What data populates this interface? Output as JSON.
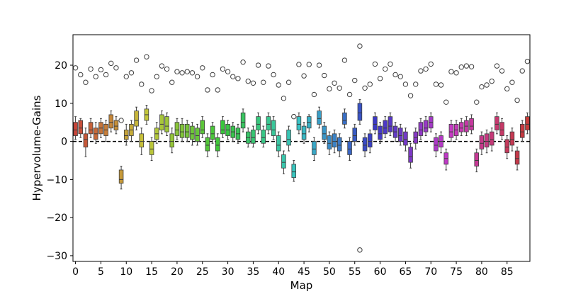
{
  "chart_data": {
    "type": "box",
    "xlabel": "Map",
    "ylabel": "Hypervolume-Gains",
    "xlim": [
      -0.5,
      89.5
    ],
    "ylim": [
      -31.5,
      28
    ],
    "x_ticks": [
      0,
      5,
      10,
      15,
      20,
      25,
      30,
      35,
      40,
      45,
      50,
      55,
      60,
      65,
      70,
      75,
      80,
      85
    ],
    "x_tick_labels": [
      "0",
      "5",
      "10",
      "15",
      "20",
      "25",
      "30",
      "35",
      "40",
      "45",
      "50",
      "55",
      "60",
      "65",
      "70",
      "75",
      "80",
      "85"
    ],
    "y_ticks": [
      -30,
      -20,
      -10,
      0,
      10,
      20
    ],
    "y_tick_labels": [
      "−30",
      "−20",
      "−10",
      "0",
      "10",
      "20"
    ],
    "reference_line": {
      "y": 0,
      "style": "dashed"
    },
    "boxes": [
      {
        "x": 0,
        "q1": 1.5,
        "med": 3.0,
        "q3": 5.0,
        "wlo": 0.5,
        "whi": 6.5,
        "fliers": [
          19.3
        ]
      },
      {
        "x": 1,
        "q1": 2.0,
        "med": 3.5,
        "q3": 5.5,
        "wlo": 1.0,
        "whi": 6.0,
        "fliers": [
          17.5
        ]
      },
      {
        "x": 2,
        "q1": -1.5,
        "med": 0.5,
        "q3": 2.0,
        "wlo": -4.0,
        "whi": 3.5,
        "fliers": [
          15.5
        ]
      },
      {
        "x": 3,
        "q1": 2.0,
        "med": 3.0,
        "q3": 5.0,
        "wlo": 1.0,
        "whi": 6.0,
        "fliers": [
          19.0
        ]
      },
      {
        "x": 4,
        "q1": 0.5,
        "med": 2.0,
        "q3": 3.5,
        "wlo": -0.5,
        "whi": 5.0,
        "fliers": [
          17.0
        ]
      },
      {
        "x": 5,
        "q1": 2.0,
        "med": 3.5,
        "q3": 5.0,
        "wlo": 1.0,
        "whi": 6.0,
        "fliers": [
          18.8
        ]
      },
      {
        "x": 6,
        "q1": 1.5,
        "med": 3.0,
        "q3": 4.5,
        "wlo": 0.0,
        "whi": 5.5,
        "fliers": [
          17.5
        ]
      },
      {
        "x": 7,
        "q1": 3.5,
        "med": 5.0,
        "q3": 7.0,
        "wlo": 2.5,
        "whi": 8.0,
        "fliers": [
          20.5
        ]
      },
      {
        "x": 8,
        "q1": 3.0,
        "med": 4.0,
        "q3": 5.5,
        "wlo": 2.0,
        "whi": 6.5,
        "fliers": [
          19.3
        ]
      },
      {
        "x": 9,
        "q1": -11.0,
        "med": -10.0,
        "q3": -7.5,
        "wlo": -12.5,
        "whi": -6.5,
        "fliers": [
          5.5
        ]
      },
      {
        "x": 10,
        "q1": 0.5,
        "med": 1.5,
        "q3": 3.0,
        "wlo": -1.0,
        "whi": 4.5,
        "fliers": [
          17.0
        ]
      },
      {
        "x": 11,
        "q1": 1.5,
        "med": 3.0,
        "q3": 4.5,
        "wlo": 0.0,
        "whi": 5.5,
        "fliers": [
          18.0
        ]
      },
      {
        "x": 12,
        "q1": 4.0,
        "med": 5.5,
        "q3": 8.0,
        "wlo": 3.0,
        "whi": 9.0,
        "fliers": [
          21.3
        ]
      },
      {
        "x": 13,
        "q1": -1.5,
        "med": 0.0,
        "q3": 2.0,
        "wlo": -3.5,
        "whi": 3.5,
        "fliers": [
          15.0
        ]
      },
      {
        "x": 14,
        "q1": 5.5,
        "med": 7.0,
        "q3": 8.5,
        "wlo": 4.5,
        "whi": 9.5,
        "fliers": [
          22.2
        ]
      },
      {
        "x": 15,
        "q1": -3.5,
        "med": -2.0,
        "q3": 0.0,
        "wlo": -5.0,
        "whi": 1.0,
        "fliers": [
          13.3
        ]
      },
      {
        "x": 16,
        "q1": 0.5,
        "med": 2.0,
        "q3": 3.5,
        "wlo": -0.5,
        "whi": 5.0,
        "fliers": [
          17.0
        ]
      },
      {
        "x": 17,
        "q1": 3.0,
        "med": 4.5,
        "q3": 7.0,
        "wlo": 2.0,
        "whi": 8.0,
        "fliers": [
          19.8
        ]
      },
      {
        "x": 18,
        "q1": 2.5,
        "med": 4.0,
        "q3": 6.5,
        "wlo": 1.5,
        "whi": 7.5,
        "fliers": [
          19.0
        ]
      },
      {
        "x": 19,
        "q1": -1.5,
        "med": 0.0,
        "q3": 2.0,
        "wlo": -3.0,
        "whi": 3.5,
        "fliers": [
          15.5
        ]
      },
      {
        "x": 20,
        "q1": 1.5,
        "med": 3.0,
        "q3": 5.0,
        "wlo": 0.5,
        "whi": 6.0,
        "fliers": [
          18.3
        ]
      },
      {
        "x": 21,
        "q1": 1.0,
        "med": 2.5,
        "q3": 4.5,
        "wlo": 0.0,
        "whi": 6.0,
        "fliers": [
          18.0
        ]
      },
      {
        "x": 22,
        "q1": 1.0,
        "med": 2.5,
        "q3": 4.5,
        "wlo": 0.0,
        "whi": 5.5,
        "fliers": [
          18.3
        ]
      },
      {
        "x": 23,
        "q1": 0.5,
        "med": 2.0,
        "q3": 4.0,
        "wlo": -1.0,
        "whi": 5.0,
        "fliers": [
          18.0
        ]
      },
      {
        "x": 24,
        "q1": 0.0,
        "med": 1.5,
        "q3": 3.5,
        "wlo": -1.0,
        "whi": 4.5,
        "fliers": [
          17.0
        ]
      },
      {
        "x": 25,
        "q1": 2.0,
        "med": 3.0,
        "q3": 5.5,
        "wlo": 1.0,
        "whi": 6.5,
        "fliers": [
          19.3
        ]
      },
      {
        "x": 26,
        "q1": -2.5,
        "med": -1.0,
        "q3": 1.0,
        "wlo": -4.0,
        "whi": 2.0,
        "fliers": [
          13.5
        ]
      },
      {
        "x": 27,
        "q1": 0.5,
        "med": 2.0,
        "q3": 4.0,
        "wlo": -0.5,
        "whi": 5.0,
        "fliers": [
          17.5
        ]
      },
      {
        "x": 28,
        "q1": -2.5,
        "med": -1.0,
        "q3": 1.0,
        "wlo": -4.0,
        "whi": 2.0,
        "fliers": [
          13.5
        ]
      },
      {
        "x": 29,
        "q1": 2.0,
        "med": 3.0,
        "q3": 5.5,
        "wlo": 1.0,
        "whi": 6.5,
        "fliers": [
          19.0
        ]
      },
      {
        "x": 30,
        "q1": 1.5,
        "med": 3.0,
        "q3": 4.5,
        "wlo": 0.5,
        "whi": 5.5,
        "fliers": [
          18.3
        ]
      },
      {
        "x": 31,
        "q1": 1.0,
        "med": 2.5,
        "q3": 4.0,
        "wlo": 0.0,
        "whi": 5.0,
        "fliers": [
          17.0
        ]
      },
      {
        "x": 32,
        "q1": 0.5,
        "med": 2.0,
        "q3": 3.5,
        "wlo": -0.5,
        "whi": 4.5,
        "fliers": [
          16.5
        ]
      },
      {
        "x": 33,
        "q1": 3.5,
        "med": 5.0,
        "q3": 7.5,
        "wlo": 2.5,
        "whi": 8.5,
        "fliers": [
          20.8
        ]
      },
      {
        "x": 34,
        "q1": -0.5,
        "med": 1.0,
        "q3": 2.5,
        "wlo": -1.5,
        "whi": 3.5,
        "fliers": [
          15.8
        ]
      },
      {
        "x": 35,
        "q1": -0.5,
        "med": 1.0,
        "q3": 3.0,
        "wlo": -1.5,
        "whi": 4.0,
        "fliers": [
          15.3
        ]
      },
      {
        "x": 36,
        "q1": 3.0,
        "med": 4.5,
        "q3": 6.5,
        "wlo": 2.0,
        "whi": 7.5,
        "fliers": [
          20.0
        ]
      },
      {
        "x": 37,
        "q1": -0.5,
        "med": 1.0,
        "q3": 3.0,
        "wlo": -1.5,
        "whi": 4.0,
        "fliers": [
          15.5
        ]
      },
      {
        "x": 38,
        "q1": 3.0,
        "med": 4.5,
        "q3": 6.5,
        "wlo": 2.0,
        "whi": 7.5,
        "fliers": [
          19.8
        ]
      },
      {
        "x": 39,
        "q1": 1.5,
        "med": 3.0,
        "q3": 5.5,
        "wlo": 0.5,
        "whi": 6.5,
        "fliers": [
          17.5
        ]
      },
      {
        "x": 40,
        "q1": -2.5,
        "med": -1.0,
        "q3": 1.5,
        "wlo": -4.0,
        "whi": 2.5,
        "fliers": [
          14.8
        ]
      },
      {
        "x": 41,
        "q1": -7.0,
        "med": -5.5,
        "q3": -3.5,
        "wlo": -8.5,
        "whi": -2.5,
        "fliers": [
          11.3
        ]
      },
      {
        "x": 42,
        "q1": -1.0,
        "med": 0.5,
        "q3": 3.0,
        "wlo": -2.5,
        "whi": 4.0,
        "fliers": [
          15.5
        ]
      },
      {
        "x": 43,
        "q1": -9.5,
        "med": -8.0,
        "q3": -6.0,
        "wlo": -10.5,
        "whi": -5.0,
        "fliers": [
          6.5
        ]
      },
      {
        "x": 44,
        "q1": 3.0,
        "med": 4.5,
        "q3": 6.5,
        "wlo": 2.0,
        "whi": 7.5,
        "fliers": [
          20.2
        ]
      },
      {
        "x": 45,
        "q1": 0.5,
        "med": 2.0,
        "q3": 4.0,
        "wlo": -0.5,
        "whi": 5.0,
        "fliers": [
          17.2
        ]
      },
      {
        "x": 46,
        "q1": 3.5,
        "med": 5.0,
        "q3": 6.5,
        "wlo": 2.5,
        "whi": 7.0,
        "fliers": [
          20.2
        ]
      },
      {
        "x": 47,
        "q1": -3.5,
        "med": -2.0,
        "q3": 0.0,
        "wlo": -5.0,
        "whi": 1.0,
        "fliers": [
          12.3
        ]
      },
      {
        "x": 48,
        "q1": 4.5,
        "med": 6.0,
        "q3": 8.0,
        "wlo": 3.5,
        "whi": 9.0,
        "fliers": [
          20.0
        ]
      },
      {
        "x": 49,
        "q1": 0.5,
        "med": 2.0,
        "q3": 4.0,
        "wlo": -0.5,
        "whi": 5.0,
        "fliers": [
          17.3
        ]
      },
      {
        "x": 50,
        "q1": -2.0,
        "med": -0.5,
        "q3": 1.5,
        "wlo": -3.5,
        "whi": 2.5,
        "fliers": [
          13.8
        ]
      },
      {
        "x": 51,
        "q1": -1.5,
        "med": 0.0,
        "q3": 2.0,
        "wlo": -3.0,
        "whi": 3.0,
        "fliers": [
          15.3
        ]
      },
      {
        "x": 52,
        "q1": -2.5,
        "med": -1.0,
        "q3": 1.0,
        "wlo": -4.0,
        "whi": 2.0,
        "fliers": [
          14.0
        ]
      },
      {
        "x": 53,
        "q1": 4.5,
        "med": 5.5,
        "q3": 7.5,
        "wlo": 3.5,
        "whi": 8.5,
        "fliers": [
          21.3
        ]
      },
      {
        "x": 54,
        "q1": -3.5,
        "med": -2.0,
        "q3": 0.0,
        "wlo": -5.0,
        "whi": 1.0,
        "fliers": [
          12.3
        ]
      },
      {
        "x": 55,
        "q1": 0.0,
        "med": 1.5,
        "q3": 3.5,
        "wlo": -1.0,
        "whi": 4.5,
        "fliers": [
          16.0
        ]
      },
      {
        "x": 56,
        "q1": 5.5,
        "med": 7.5,
        "q3": 10.0,
        "wlo": 4.5,
        "whi": 11.0,
        "fliers": [
          25.0,
          -28.5
        ]
      },
      {
        "x": 57,
        "q1": -2.5,
        "med": -1.0,
        "q3": 1.0,
        "wlo": -4.0,
        "whi": 2.0,
        "fliers": [
          14.0
        ]
      },
      {
        "x": 58,
        "q1": -1.5,
        "med": 0.0,
        "q3": 2.0,
        "wlo": -3.0,
        "whi": 3.0,
        "fliers": [
          15.0
        ]
      },
      {
        "x": 59,
        "q1": 3.0,
        "med": 4.5,
        "q3": 6.5,
        "wlo": 2.0,
        "whi": 7.5,
        "fliers": [
          20.3
        ]
      },
      {
        "x": 60,
        "q1": 0.5,
        "med": 2.0,
        "q3": 4.0,
        "wlo": -0.5,
        "whi": 5.0,
        "fliers": [
          16.5
        ]
      },
      {
        "x": 61,
        "q1": 2.0,
        "med": 3.5,
        "q3": 5.5,
        "wlo": 1.0,
        "whi": 6.5,
        "fliers": [
          19.0
        ]
      },
      {
        "x": 62,
        "q1": 2.5,
        "med": 4.0,
        "q3": 6.5,
        "wlo": 1.5,
        "whi": 7.5,
        "fliers": [
          20.3
        ]
      },
      {
        "x": 63,
        "q1": 1.0,
        "med": 2.5,
        "q3": 4.0,
        "wlo": 0.0,
        "whi": 5.0,
        "fliers": [
          17.5
        ]
      },
      {
        "x": 64,
        "q1": 0.0,
        "med": 1.5,
        "q3": 3.5,
        "wlo": -1.0,
        "whi": 4.5,
        "fliers": [
          17.0
        ]
      },
      {
        "x": 65,
        "q1": -1.0,
        "med": 0.5,
        "q3": 2.5,
        "wlo": -2.5,
        "whi": 3.5,
        "fliers": [
          15.0
        ]
      },
      {
        "x": 66,
        "q1": -5.5,
        "med": -4.0,
        "q3": -1.5,
        "wlo": -7.0,
        "whi": -0.5,
        "fliers": [
          12.0
        ]
      },
      {
        "x": 67,
        "q1": -0.5,
        "med": 1.0,
        "q3": 2.5,
        "wlo": -2.0,
        "whi": 3.5,
        "fliers": [
          15.0
        ]
      },
      {
        "x": 68,
        "q1": 1.5,
        "med": 3.0,
        "q3": 5.0,
        "wlo": 0.5,
        "whi": 6.0,
        "fliers": [
          18.5
        ]
      },
      {
        "x": 69,
        "q1": 2.5,
        "med": 3.5,
        "q3": 5.5,
        "wlo": 1.5,
        "whi": 6.5,
        "fliers": [
          19.0
        ]
      },
      {
        "x": 70,
        "q1": 3.5,
        "med": 5.0,
        "q3": 6.5,
        "wlo": 2.5,
        "whi": 7.5,
        "fliers": [
          20.3
        ]
      },
      {
        "x": 71,
        "q1": -2.5,
        "med": -1.0,
        "q3": 1.0,
        "wlo": -4.0,
        "whi": 2.0,
        "fliers": [
          15.0
        ]
      },
      {
        "x": 72,
        "q1": -1.5,
        "med": 0.0,
        "q3": 1.5,
        "wlo": -3.0,
        "whi": 2.5,
        "fliers": [
          14.8
        ]
      },
      {
        "x": 73,
        "q1": -6.0,
        "med": -4.5,
        "q3": -3.0,
        "wlo": -7.5,
        "whi": -2.0,
        "fliers": [
          10.3
        ]
      },
      {
        "x": 74,
        "q1": 1.0,
        "med": 2.5,
        "q3": 4.5,
        "wlo": 0.0,
        "whi": 5.5,
        "fliers": [
          18.3
        ]
      },
      {
        "x": 75,
        "q1": 1.5,
        "med": 3.0,
        "q3": 4.5,
        "wlo": 0.5,
        "whi": 5.5,
        "fliers": [
          18.0
        ]
      },
      {
        "x": 76,
        "q1": 2.5,
        "med": 3.5,
        "q3": 5.0,
        "wlo": 1.5,
        "whi": 6.0,
        "fliers": [
          19.5
        ]
      },
      {
        "x": 77,
        "q1": 2.5,
        "med": 4.0,
        "q3": 5.5,
        "wlo": 1.5,
        "whi": 6.5,
        "fliers": [
          19.8
        ]
      },
      {
        "x": 78,
        "q1": 3.0,
        "med": 4.0,
        "q3": 6.0,
        "wlo": 2.0,
        "whi": 7.0,
        "fliers": [
          19.6
        ]
      },
      {
        "x": 79,
        "q1": -6.5,
        "med": -5.0,
        "q3": -3.0,
        "wlo": -8.0,
        "whi": -2.0,
        "fliers": [
          10.3
        ]
      },
      {
        "x": 80,
        "q1": -2.0,
        "med": -0.5,
        "q3": 1.5,
        "wlo": -3.5,
        "whi": 2.5,
        "fliers": [
          14.3
        ]
      },
      {
        "x": 81,
        "q1": -1.5,
        "med": 0.0,
        "q3": 2.0,
        "wlo": -3.0,
        "whi": 3.0,
        "fliers": [
          14.8
        ]
      },
      {
        "x": 82,
        "q1": -1.0,
        "med": 0.5,
        "q3": 2.5,
        "wlo": -2.5,
        "whi": 3.5,
        "fliers": [
          15.8
        ]
      },
      {
        "x": 83,
        "q1": 3.0,
        "med": 4.5,
        "q3": 6.5,
        "wlo": 2.0,
        "whi": 7.5,
        "fliers": [
          19.8
        ]
      },
      {
        "x": 84,
        "q1": 1.5,
        "med": 3.0,
        "q3": 5.0,
        "wlo": 0.5,
        "whi": 6.0,
        "fliers": [
          18.5
        ]
      },
      {
        "x": 85,
        "q1": -3.0,
        "med": -1.5,
        "q3": 0.5,
        "wlo": -4.5,
        "whi": 1.5,
        "fliers": [
          13.8
        ]
      },
      {
        "x": 86,
        "q1": -1.0,
        "med": 0.5,
        "q3": 2.5,
        "wlo": -2.5,
        "whi": 3.5,
        "fliers": [
          15.5
        ]
      },
      {
        "x": 87,
        "q1": -6.0,
        "med": -4.5,
        "q3": -2.5,
        "wlo": -7.5,
        "whi": -1.5,
        "fliers": [
          10.8
        ]
      },
      {
        "x": 88,
        "q1": 1.0,
        "med": 2.5,
        "q3": 4.5,
        "wlo": 0.0,
        "whi": 5.5,
        "fliers": [
          18.5
        ]
      },
      {
        "x": 89,
        "q1": 3.0,
        "med": 4.5,
        "q3": 6.5,
        "wlo": 2.0,
        "whi": 7.5,
        "fliers": [
          21.0
        ]
      }
    ]
  }
}
